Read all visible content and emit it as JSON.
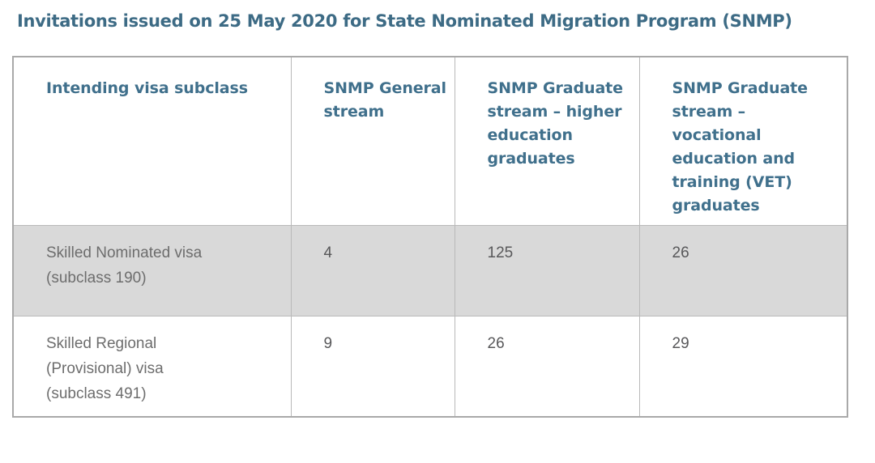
{
  "page": {
    "title": "Invitations issued on 25 May 2020 for State Nominated Migration Program (SNMP)"
  },
  "colors": {
    "accent_heading": "#3d6b85",
    "table_header_text": "#40708c",
    "body_text": "#6d6d6d",
    "number_text": "#58585a",
    "shaded_row_background": "#d9d9d9",
    "table_border": "#a9a9a9"
  },
  "table": {
    "headers": [
      {
        "label": "Intending visa subclass"
      },
      {
        "label": "SNMP General\nstream"
      },
      {
        "label": "SNMP Graduate\nstream – higher\neducation\ngraduates"
      },
      {
        "label": "SNMP Graduate\nstream –\nvocational\neducation and\ntraining (VET)\ngraduates"
      }
    ],
    "rows": [
      {
        "visa": "Skilled Nominated visa\n(subclass 190)",
        "values": [
          "4",
          "125",
          "26"
        ]
      },
      {
        "visa": "Skilled Regional\n(Provisional) visa\n(subclass 491)",
        "values": [
          "9",
          "26",
          "29"
        ]
      }
    ]
  }
}
